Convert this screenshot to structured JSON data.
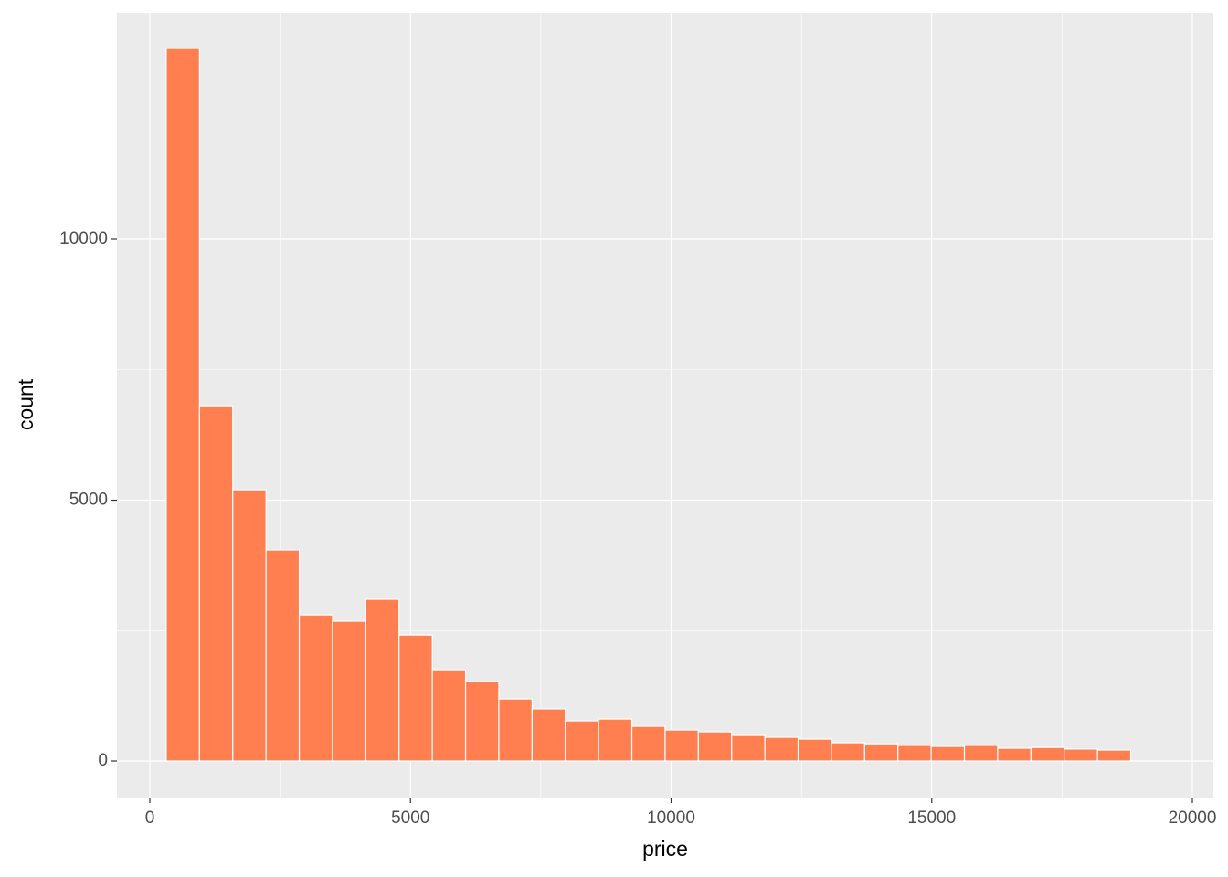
{
  "chart_data": {
    "type": "histogram",
    "x_label": "price",
    "y_label": "count",
    "bins": [
      315,
      953,
      1591,
      2229,
      2867,
      3505,
      4143,
      4781,
      5419,
      6057,
      6695,
      7333,
      7971,
      8609,
      9247,
      9885,
      10523,
      11161,
      11799,
      12437,
      13075,
      13713,
      14351,
      14989,
      15627,
      16265,
      16903,
      17541,
      18179,
      18817
    ],
    "values": [
      13660,
      6810,
      5200,
      4045,
      2800,
      2680,
      3100,
      2415,
      1750,
      1525,
      1190,
      1000,
      770,
      805,
      665,
      595,
      560,
      490,
      455,
      420,
      350,
      330,
      300,
      280,
      300,
      245,
      260,
      230,
      210
    ],
    "color": "#ff7f50",
    "xlim": [
      -631,
      20403
    ],
    "ylim": [
      -700,
      14343
    ],
    "xticks": [
      0,
      5000,
      10000,
      15000,
      20000
    ],
    "yticks": [
      0,
      5000,
      10000
    ],
    "grid": true
  }
}
